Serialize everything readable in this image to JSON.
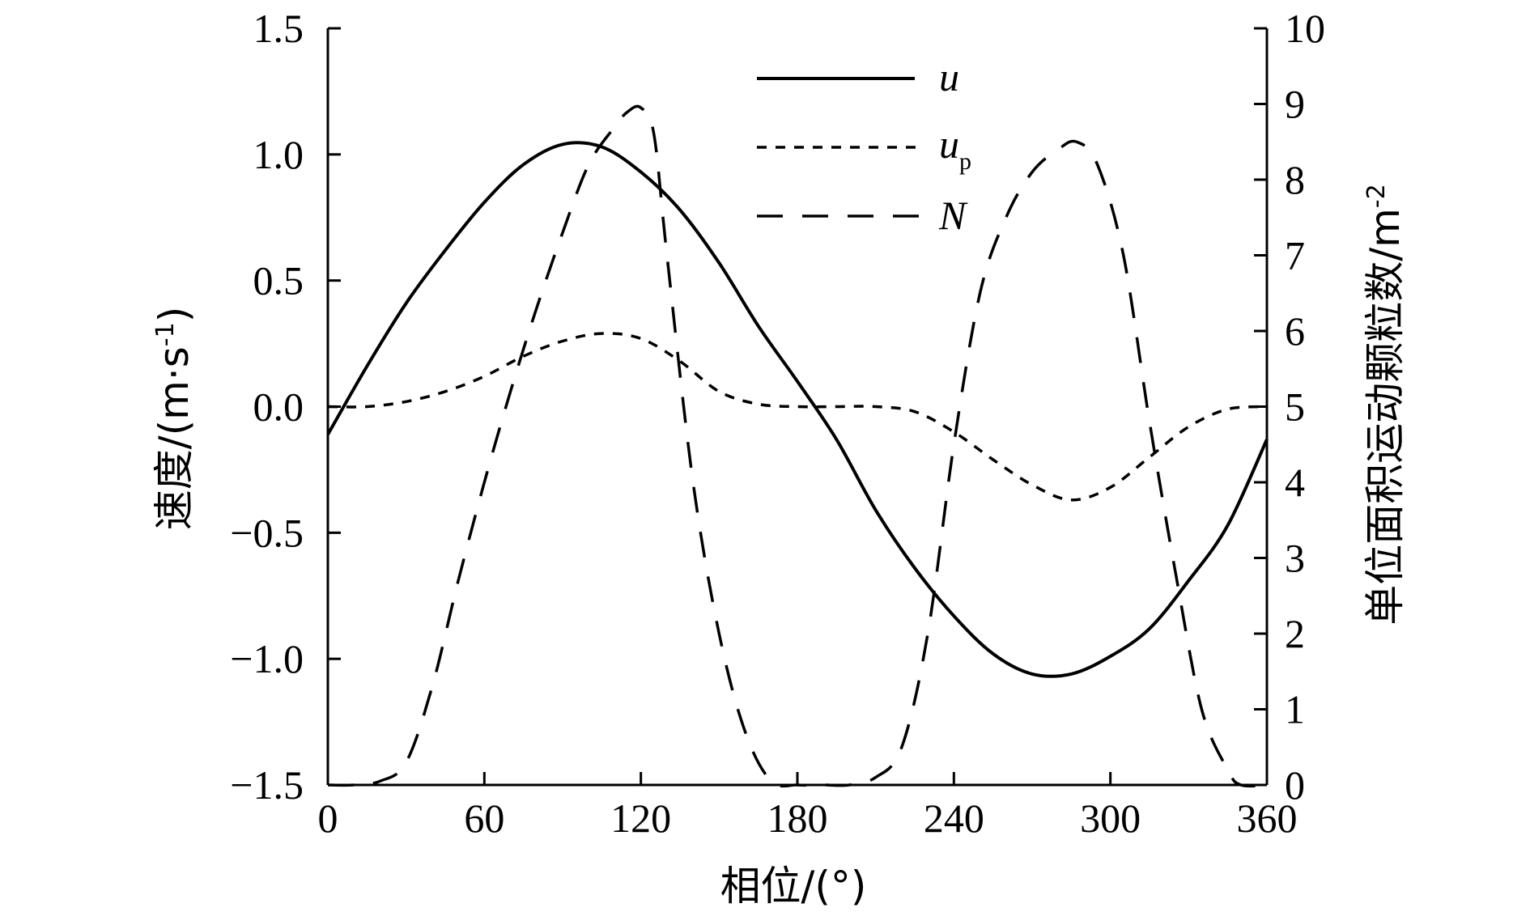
{
  "chart_data": {
    "type": "line",
    "title": "",
    "xlabel": "相位/(°)",
    "ylabel_left": "速度/(m·s",
    "ylabel_left_sup": "-1",
    "ylabel_left_close": ")",
    "ylabel_right": "单位面积运动颗粒数/m",
    "ylabel_right_sup": "-2",
    "xlim": [
      0,
      360
    ],
    "ylim_left": [
      -1.5,
      1.5
    ],
    "ylim_right": [
      0,
      10
    ],
    "x_ticks": [
      "0",
      "60",
      "120",
      "180",
      "240",
      "300",
      "360"
    ],
    "y_left_ticks": [
      "1.5",
      "1.0",
      "0.5",
      "0.0",
      "−0.5",
      "−1.0",
      "−1.5"
    ],
    "y_right_ticks": [
      "10",
      "9",
      "8",
      "7",
      "6",
      "5",
      "4",
      "3",
      "2",
      "1",
      "0"
    ],
    "grid": false,
    "legend_position": "top-center",
    "series": [
      {
        "name": "u",
        "axis": "left",
        "style": "solid",
        "x": [
          0,
          15,
          30,
          45,
          60,
          75,
          90,
          105,
          120,
          135,
          150,
          165,
          180,
          195,
          210,
          225,
          240,
          255,
          270,
          285,
          300,
          315,
          330,
          345,
          360
        ],
        "y": [
          -0.11,
          0.16,
          0.41,
          0.62,
          0.81,
          0.96,
          1.04,
          1.03,
          0.93,
          0.78,
          0.57,
          0.32,
          0.1,
          -0.13,
          -0.41,
          -0.64,
          -0.83,
          -0.98,
          -1.06,
          -1.06,
          -0.99,
          -0.88,
          -0.69,
          -0.47,
          -0.13
        ]
      },
      {
        "name": "u",
        "name_sub": "p",
        "axis": "left",
        "style": "dotted",
        "x": [
          0,
          15,
          30,
          45,
          60,
          75,
          90,
          105,
          120,
          135,
          150,
          165,
          180,
          195,
          210,
          225,
          240,
          255,
          270,
          285,
          300,
          315,
          330,
          345,
          360
        ],
        "y": [
          0.0,
          0.0,
          0.02,
          0.06,
          0.12,
          0.2,
          0.26,
          0.29,
          0.27,
          0.18,
          0.06,
          0.01,
          0.0,
          0.0,
          0.0,
          -0.02,
          -0.1,
          -0.21,
          -0.31,
          -0.37,
          -0.32,
          -0.2,
          -0.08,
          -0.01,
          0.0
        ]
      },
      {
        "name": "N",
        "axis": "right",
        "style": "dashed",
        "x": [
          0,
          10,
          20,
          30,
          40,
          50,
          60,
          70,
          80,
          90,
          100,
          110,
          115,
          120,
          125,
          130,
          140,
          150,
          160,
          170,
          180,
          190,
          200,
          210,
          220,
          230,
          240,
          250,
          260,
          270,
          280,
          287,
          295,
          305,
          315,
          325,
          335,
          345,
          350,
          360
        ],
        "y": [
          0.0,
          0.0,
          0.05,
          0.3,
          1.3,
          2.7,
          4.0,
          5.2,
          6.3,
          7.3,
          8.2,
          8.7,
          8.9,
          8.95,
          8.6,
          7.0,
          4.0,
          2.0,
          0.7,
          0.05,
          0.0,
          0.0,
          0.0,
          0.1,
          0.5,
          2.0,
          4.5,
          6.5,
          7.5,
          8.1,
          8.4,
          8.5,
          8.2,
          7.0,
          4.8,
          2.8,
          1.0,
          0.2,
          0.0,
          0.0
        ]
      }
    ]
  }
}
